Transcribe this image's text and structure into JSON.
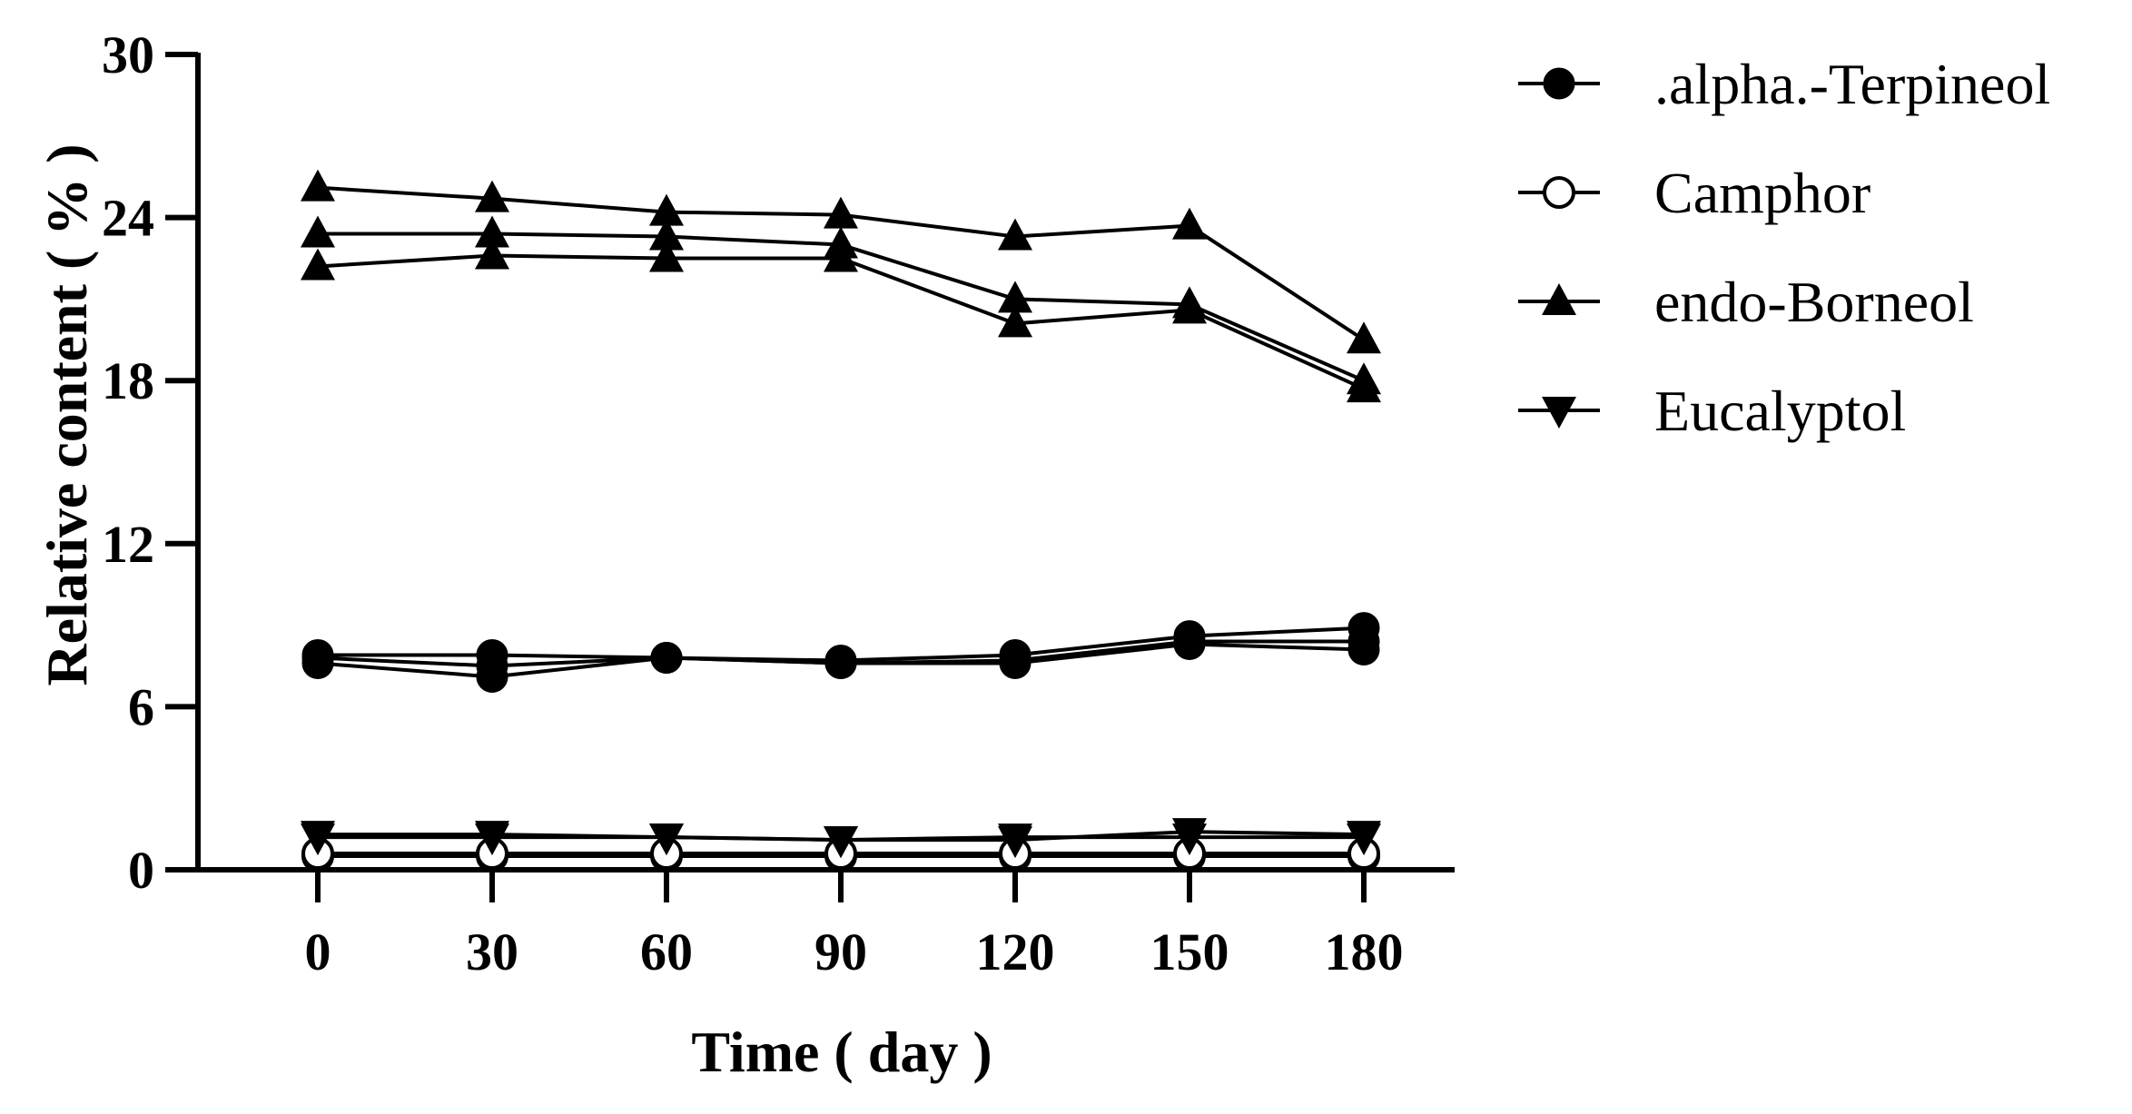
{
  "chart_data": {
    "type": "line",
    "title": "",
    "xlabel": "Time ( day )",
    "ylabel": "Relative content ( % )",
    "x": [
      0,
      30,
      60,
      90,
      120,
      150,
      180
    ],
    "xticks": [
      "0",
      "30",
      "60",
      "90",
      "120",
      "150",
      "180"
    ],
    "yticks": [
      "0",
      "6",
      "12",
      "18",
      "24",
      "30"
    ],
    "ylim": [
      0,
      30
    ],
    "legend_position": "right",
    "series": [
      {
        "name": ".alpha.-Terpineol",
        "marker": "filled-circle",
        "replicates": [
          [
            7.9,
            7.9,
            7.8,
            7.7,
            7.9,
            8.6,
            8.9
          ],
          [
            7.6,
            7.1,
            7.8,
            7.6,
            7.6,
            8.3,
            8.1
          ],
          [
            7.8,
            7.5,
            7.8,
            7.6,
            7.7,
            8.4,
            8.4
          ]
        ]
      },
      {
        "name": "Camphor",
        "marker": "open-circle",
        "replicates": [
          [
            0.5,
            0.5,
            0.5,
            0.5,
            0.5,
            0.5,
            0.5
          ],
          [
            0.6,
            0.6,
            0.6,
            0.6,
            0.6,
            0.6,
            0.6
          ]
        ]
      },
      {
        "name": "endo-Borneol",
        "marker": "triangle-up",
        "replicates": [
          [
            25.1,
            24.7,
            24.2,
            24.1,
            23.3,
            23.7,
            19.5
          ],
          [
            23.4,
            23.4,
            23.3,
            23.0,
            21.0,
            20.8,
            18.0
          ],
          [
            22.2,
            22.6,
            22.5,
            22.5,
            20.1,
            20.6,
            17.7
          ]
        ]
      },
      {
        "name": "Eucalyptol",
        "marker": "triangle-down",
        "replicates": [
          [
            1.3,
            1.3,
            1.2,
            1.1,
            1.1,
            1.4,
            1.3
          ],
          [
            1.2,
            1.2,
            1.2,
            1.1,
            1.2,
            1.2,
            1.2
          ]
        ]
      }
    ]
  }
}
